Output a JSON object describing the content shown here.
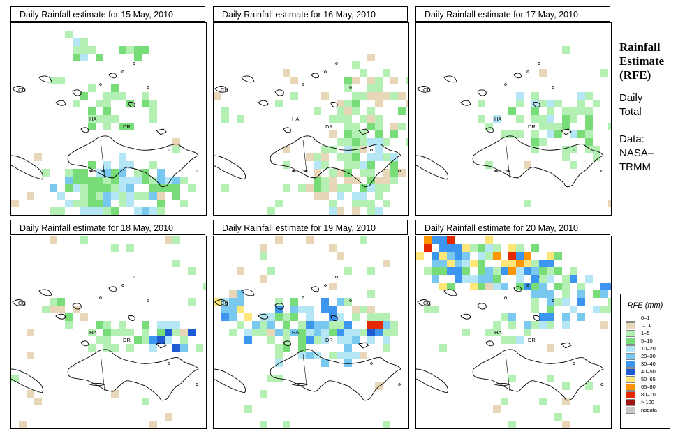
{
  "panels": [
    {
      "title": "Daily Rainfall estimate for  15 May, 2010"
    },
    {
      "title": "Daily Rainfall estimate for  16 May, 2010"
    },
    {
      "title": "Daily Rainfall estimate for  17 May, 2010"
    },
    {
      "title": "Daily Rainfall estimate for  18 May, 2010"
    },
    {
      "title": "Daily Rainfall estimate for  19 May, 2010"
    },
    {
      "title": "Daily Rainfall estimate for  20 May, 2010"
    }
  ],
  "map_labels": {
    "cu": "CU",
    "ha": "HA",
    "dr": "DR"
  },
  "side": {
    "title_lines": [
      "Rainfall",
      "Estimate",
      "(RFE)"
    ],
    "daily": [
      "Daily",
      "Total"
    ],
    "data_lines": [
      "Data:",
      "NASA–",
      "TRMM"
    ]
  },
  "legend": {
    "title": "RFE (mm)",
    "items": [
      {
        "label": "0–1",
        "color": "#ffffff"
      },
      {
        "label": ".1–1",
        "color": "#e8d6b8"
      },
      {
        "label": "1–5",
        "color": "#b4f0b4"
      },
      {
        "label": "5–10",
        "color": "#78dc78"
      },
      {
        "label": "10–20",
        "color": "#b4e6f5"
      },
      {
        "label": "20–30",
        "color": "#78c8f0"
      },
      {
        "label": "30–40",
        "color": "#3c96f0"
      },
      {
        "label": "40–50",
        "color": "#1e5ad2"
      },
      {
        "label": "50–65",
        "color": "#ffe678"
      },
      {
        "label": "65–80",
        "color": "#ff9600"
      },
      {
        "label": "80–100",
        "color": "#e62800"
      },
      {
        "label": "> 100",
        "color": "#a01414"
      },
      {
        "label": "nodata",
        "color": "#c8c8c8"
      }
    ]
  }
}
